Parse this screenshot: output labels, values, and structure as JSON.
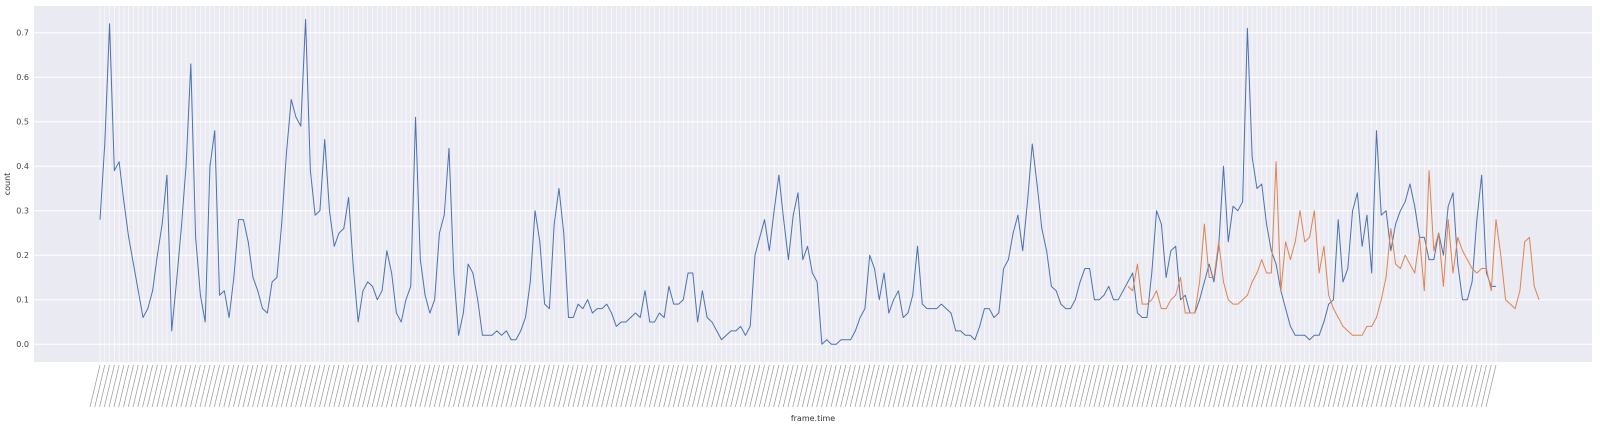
{
  "chart_data": {
    "type": "line",
    "title": "",
    "xlabel": "frame.time",
    "ylabel": "count",
    "ylim": [
      -0.04,
      0.76
    ],
    "yticks": [
      0.0,
      0.1,
      0.2,
      0.3,
      0.4,
      0.5,
      0.6,
      0.7
    ],
    "ytick_labels": [
      "0.0",
      "0.1",
      "0.2",
      "0.3",
      "0.4",
      "0.5",
      "0.6",
      "0.7"
    ],
    "grid": true,
    "x_tick_labels_note": "illegible dense rotated timestamps",
    "colors": {
      "background": "#EAEAF2",
      "grid": "#FFFFFF",
      "series_1": "#4C72B0",
      "series_2": "#DD8452"
    },
    "series": [
      {
        "start_index": 0,
        "color": "#4C72B0",
        "values": [
          0.28,
          0.45,
          0.72,
          0.39,
          0.41,
          0.32,
          0.24,
          0.18,
          0.12,
          0.06,
          0.08,
          0.12,
          0.2,
          0.27,
          0.38,
          0.03,
          0.14,
          0.26,
          0.4,
          0.63,
          0.24,
          0.11,
          0.05,
          0.4,
          0.48,
          0.11,
          0.12,
          0.06,
          0.15,
          0.28,
          0.28,
          0.23,
          0.15,
          0.12,
          0.08,
          0.07,
          0.14,
          0.15,
          0.27,
          0.43,
          0.55,
          0.51,
          0.49,
          0.73,
          0.39,
          0.29,
          0.3,
          0.46,
          0.3,
          0.22,
          0.25,
          0.26,
          0.33,
          0.17,
          0.05,
          0.12,
          0.14,
          0.13,
          0.1,
          0.12,
          0.21,
          0.16,
          0.07,
          0.05,
          0.1,
          0.13,
          0.51,
          0.19,
          0.11,
          0.07,
          0.1,
          0.25,
          0.29,
          0.44,
          0.16,
          0.02,
          0.07,
          0.18,
          0.16,
          0.1,
          0.02,
          0.02,
          0.02,
          0.03,
          0.02,
          0.03,
          0.01,
          0.01,
          0.03,
          0.06,
          0.14,
          0.3,
          0.23,
          0.09,
          0.08,
          0.27,
          0.35,
          0.25,
          0.06,
          0.06,
          0.09,
          0.08,
          0.1,
          0.07,
          0.08,
          0.08,
          0.09,
          0.07,
          0.04,
          0.05,
          0.05,
          0.06,
          0.07,
          0.06,
          0.12,
          0.05,
          0.05,
          0.07,
          0.06,
          0.13,
          0.09,
          0.09,
          0.1,
          0.16,
          0.16,
          0.05,
          0.12,
          0.06,
          0.05,
          0.03,
          0.01,
          0.02,
          0.03,
          0.03,
          0.04,
          0.02,
          0.04,
          0.2,
          0.24,
          0.28,
          0.21,
          0.3,
          0.38,
          0.28,
          0.19,
          0.29,
          0.34,
          0.19,
          0.22,
          0.16,
          0.14,
          0.0,
          0.01,
          0.0,
          0.0,
          0.01,
          0.01,
          0.01,
          0.03,
          0.06,
          0.08,
          0.2,
          0.17,
          0.1,
          0.16,
          0.07,
          0.1,
          0.12,
          0.06,
          0.07,
          0.11,
          0.22,
          0.09,
          0.08,
          0.08,
          0.08,
          0.09,
          0.08,
          0.07,
          0.03,
          0.03,
          0.02,
          0.02,
          0.01,
          0.04,
          0.08,
          0.08,
          0.06,
          0.07,
          0.17,
          0.19,
          0.25,
          0.29,
          0.21,
          0.32,
          0.45,
          0.36,
          0.26,
          0.21,
          0.13,
          0.12,
          0.09,
          0.08,
          0.08,
          0.1,
          0.14,
          0.17,
          0.17,
          0.1,
          0.1,
          0.11,
          0.13,
          0.1,
          0.1,
          0.12,
          0.14,
          0.16,
          0.07,
          0.06,
          0.06,
          0.16,
          0.3,
          0.27,
          0.15,
          0.21,
          0.22,
          0.1,
          0.11,
          0.07,
          0.07,
          0.1,
          0.14,
          0.18,
          0.14,
          0.22,
          0.4,
          0.23,
          0.31,
          0.3,
          0.32,
          0.71,
          0.42,
          0.35,
          0.36,
          0.27,
          0.21,
          0.18,
          0.12,
          0.08,
          0.04,
          0.02,
          0.02,
          0.02,
          0.01,
          0.02,
          0.02,
          0.05,
          0.09,
          0.1,
          0.28,
          0.14,
          0.17,
          0.3,
          0.34,
          0.22,
          0.29,
          0.16,
          0.48,
          0.29,
          0.3,
          0.21,
          0.27,
          0.3,
          0.32,
          0.36,
          0.31,
          0.24,
          0.24,
          0.19,
          0.19,
          0.25,
          0.2,
          0.31,
          0.34,
          0.18,
          0.1,
          0.1,
          0.14,
          0.28,
          0.38,
          0.16,
          0.13,
          0.13
        ]
      },
      {
        "start_index": 215,
        "color": "#DD8452",
        "values": [
          0.13,
          0.12,
          0.18,
          0.09,
          0.09,
          0.1,
          0.12,
          0.08,
          0.08,
          0.1,
          0.11,
          0.15,
          0.07,
          0.07,
          0.07,
          0.14,
          0.27,
          0.15,
          0.15,
          0.23,
          0.14,
          0.1,
          0.09,
          0.09,
          0.1,
          0.11,
          0.14,
          0.16,
          0.19,
          0.16,
          0.16,
          0.41,
          0.12,
          0.23,
          0.19,
          0.23,
          0.3,
          0.23,
          0.24,
          0.3,
          0.16,
          0.22,
          0.11,
          0.08,
          0.06,
          0.04,
          0.03,
          0.02,
          0.02,
          0.02,
          0.04,
          0.04,
          0.06,
          0.1,
          0.15,
          0.26,
          0.18,
          0.17,
          0.2,
          0.18,
          0.16,
          0.24,
          0.12,
          0.39,
          0.21,
          0.25,
          0.13,
          0.28,
          0.16,
          0.24,
          0.21,
          0.19,
          0.17,
          0.16,
          0.17,
          0.17,
          0.12,
          0.28,
          0.2,
          0.1,
          0.09,
          0.08,
          0.12,
          0.23,
          0.24,
          0.13,
          0.1
        ]
      }
    ]
  }
}
